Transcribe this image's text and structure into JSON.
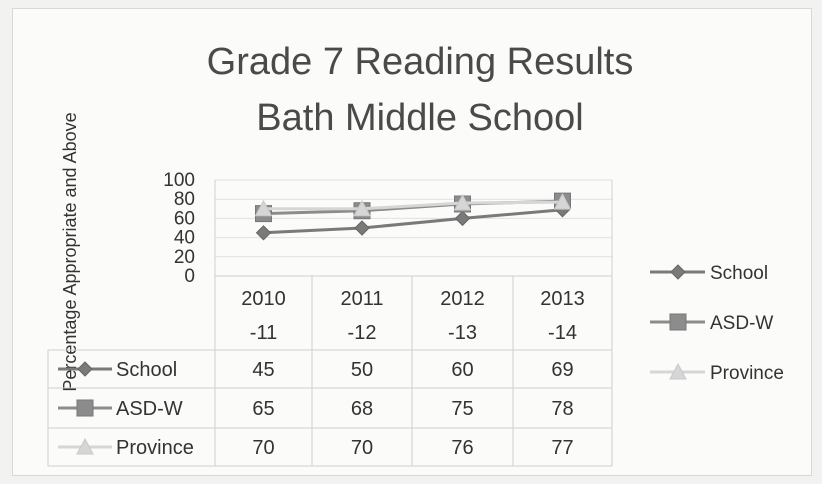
{
  "chart_data": {
    "type": "line",
    "title": "Grade 7 Reading Results",
    "subtitle": "Bath Middle School",
    "ylabel": "Percentage Appropriate and Above",
    "ylim": [
      0,
      100
    ],
    "yticks": [
      0,
      20,
      40,
      60,
      80,
      100
    ],
    "categories": [
      [
        "2010",
        "-11"
      ],
      [
        "2011",
        "-12"
      ],
      [
        "2012",
        "-13"
      ],
      [
        "2013",
        "-14"
      ]
    ],
    "series": [
      {
        "name": "School",
        "values": [
          45,
          50,
          60,
          69
        ],
        "color": "#7a7a7a",
        "marker": "diamond"
      },
      {
        "name": "ASD-W",
        "values": [
          65,
          68,
          75,
          78
        ],
        "color": "#8c8c8c",
        "marker": "square"
      },
      {
        "name": "Province",
        "values": [
          70,
          70,
          76,
          77
        ],
        "color": "#d6d6d6",
        "marker": "triangle"
      }
    ],
    "grid": true,
    "legend": "right",
    "data_table": true
  }
}
